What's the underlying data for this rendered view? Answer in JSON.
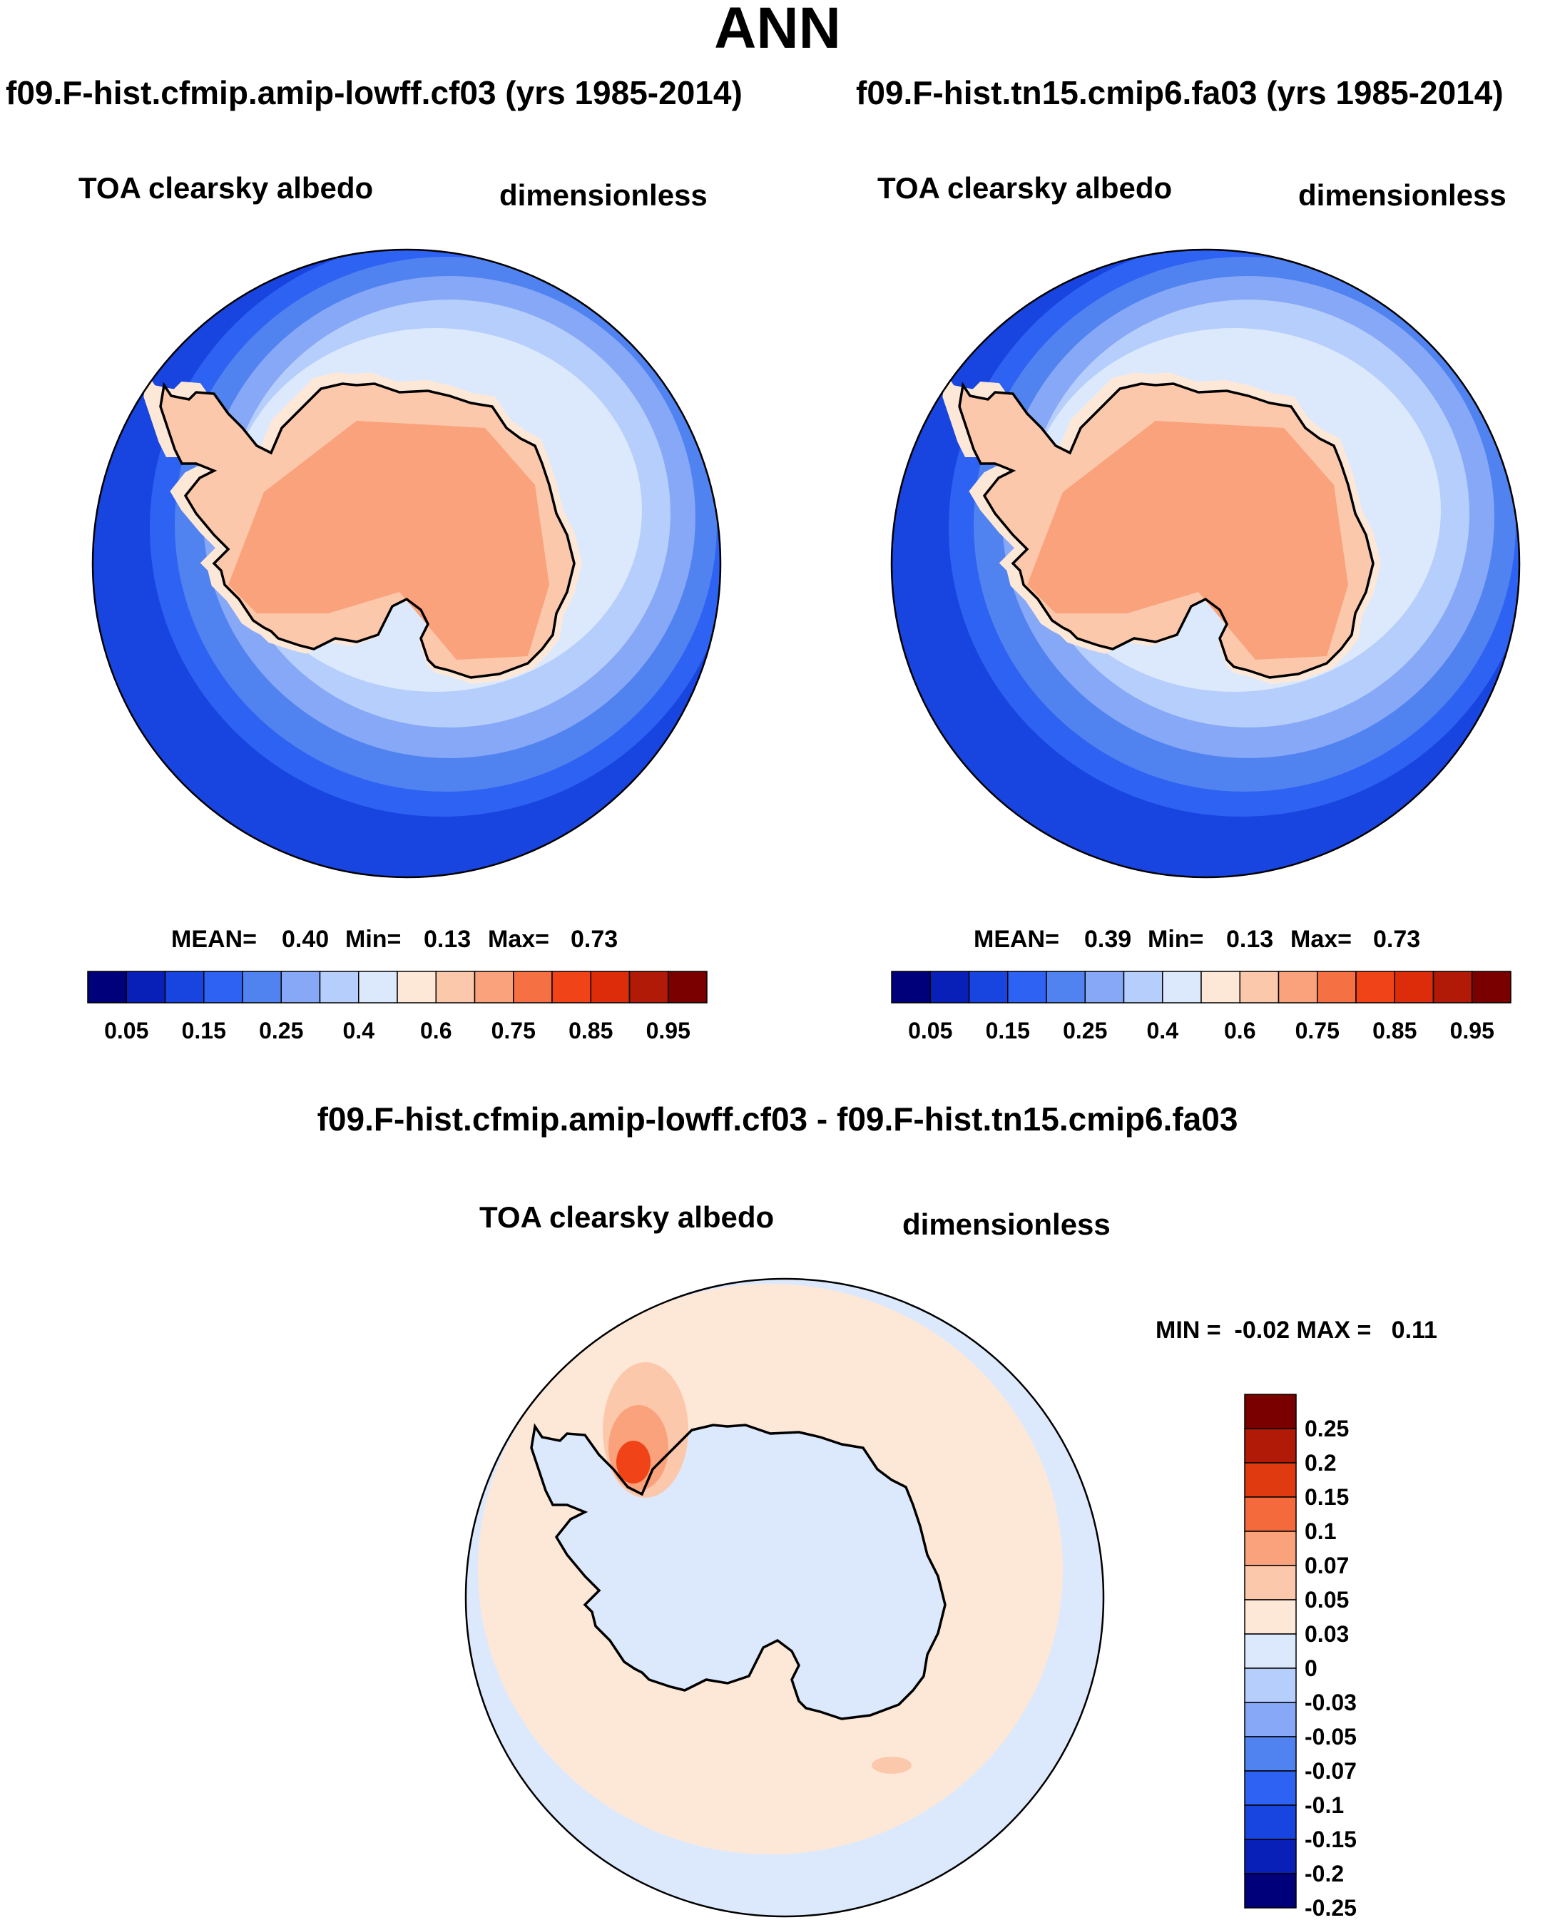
{
  "title": "ANN",
  "panels": [
    {
      "case": "f09.F-hist.cfmip.amip-lowff.cf03 (yrs 1985-2014)",
      "variable": "TOA clearsky albedo",
      "units": "dimensionless",
      "stats": {
        "mean_label": "MEAN=",
        "mean": "0.40",
        "min_label": "Min=",
        "min": "0.13",
        "max_label": "Max=",
        "max": "0.73"
      }
    },
    {
      "case": "f09.F-hist.tn15.cmip6.fa03 (yrs 1985-2014)",
      "variable": "TOA clearsky albedo",
      "units": "dimensionless",
      "stats": {
        "mean_label": "MEAN=",
        "mean": "0.39",
        "min_label": "Min=",
        "min": "0.13",
        "max_label": "Max=",
        "max": "0.73"
      }
    }
  ],
  "diff": {
    "title": "f09.F-hist.cfmip.amip-lowff.cf03 - f09.F-hist.tn15.cmip6.fa03",
    "variable": "TOA clearsky albedo",
    "units": "dimensionless",
    "stats_text": "MIN =  -0.02 MAX =   0.11"
  },
  "chart_data": {
    "type": "map",
    "projection": "south-polar stereographic",
    "abs_colorbar": {
      "tick_labels": [
        "0.05",
        "0.15",
        "0.25",
        "0.4",
        "0.6",
        "0.75",
        "0.85",
        "0.95"
      ],
      "colors": [
        "#00007a",
        "#0820b8",
        "#1844e0",
        "#2e62f2",
        "#5082f0",
        "#86a8f6",
        "#b6cefb",
        "#dce9fc",
        "#fde8d8",
        "#fcc8ac",
        "#f9a27c",
        "#f57144",
        "#f04418",
        "#dc2c0a",
        "#b01a06",
        "#7a0000"
      ]
    },
    "diff_colorbar": {
      "tick_labels": [
        "0.25",
        "0.2",
        "0.15",
        "0.1",
        "0.07",
        "0.05",
        "0.03",
        "0",
        "-0.03",
        "-0.05",
        "-0.07",
        "-0.1",
        "-0.15",
        "-0.2",
        "-0.25"
      ],
      "colors": [
        "#7a0000",
        "#b01a06",
        "#e03a10",
        "#f46a3c",
        "#f9a27c",
        "#fcc8ac",
        "#fde8d8",
        "#dce9fc",
        "#b6cefb",
        "#86a8f6",
        "#5082f0",
        "#2e62f2",
        "#1844e0",
        "#0820b8",
        "#00007a"
      ]
    },
    "fields": {
      "ocean_far": "#1844e0",
      "ocean_mid": "#2e62f2",
      "ocean_near": "#5082f0",
      "sea_ice_edge": "#86a8f6",
      "sea_ice": "#b6cefb",
      "pack_ice": "#dce9fc",
      "coast_band": "#fde8d8",
      "ice_sheet_edge": "#fcc8ac",
      "ice_sheet": "#f9a27c",
      "diff_positive": "#fde8d8",
      "diff_negative": "#dce9fc",
      "diff_peak": "#f04418"
    }
  }
}
